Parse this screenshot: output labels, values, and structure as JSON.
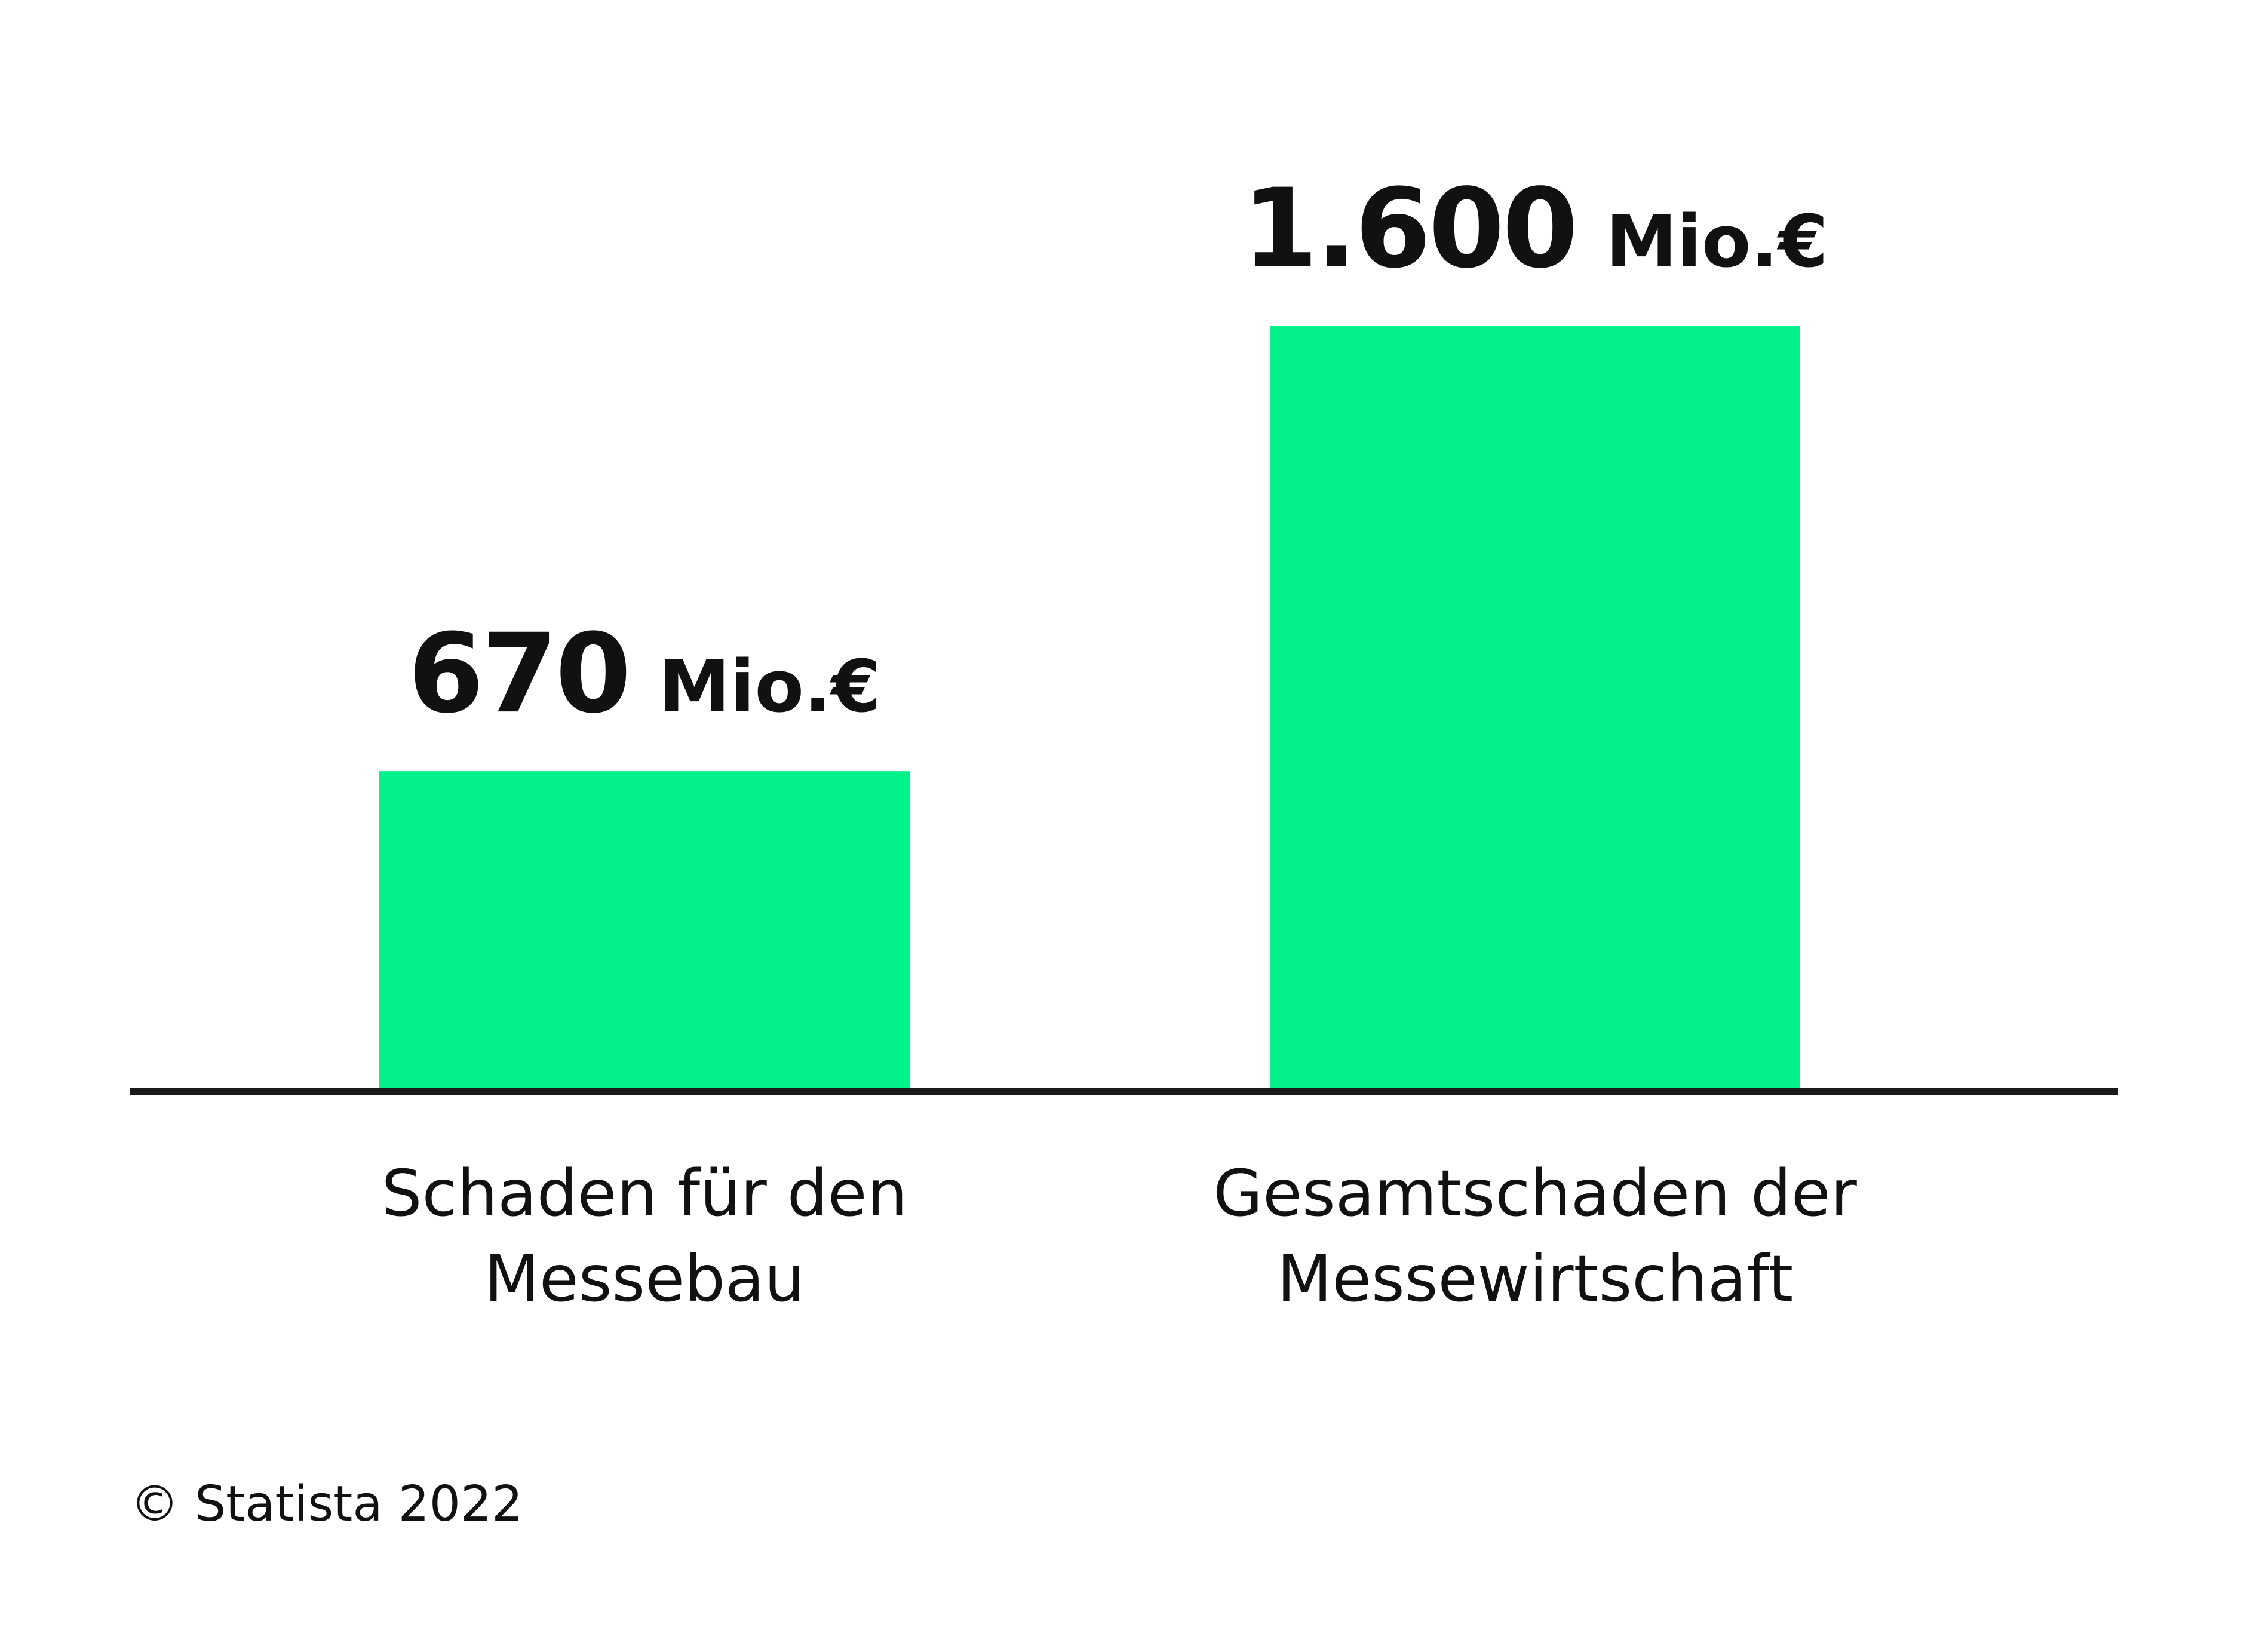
{
  "chart_data": {
    "type": "bar",
    "categories": [
      [
        "Schaden für den",
        "Messebau"
      ],
      [
        "Gesamtschaden der",
        "Messewirtschaft"
      ]
    ],
    "values": [
      670,
      1600
    ],
    "value_labels": [
      "670",
      "1.600"
    ],
    "unit": "Mio.€",
    "bar_color": "#02f18a",
    "axis_color": "#1a1a1a",
    "grid": false,
    "legend": "none",
    "ylim": [
      0,
      1600
    ]
  },
  "source": "© Statista 2022"
}
